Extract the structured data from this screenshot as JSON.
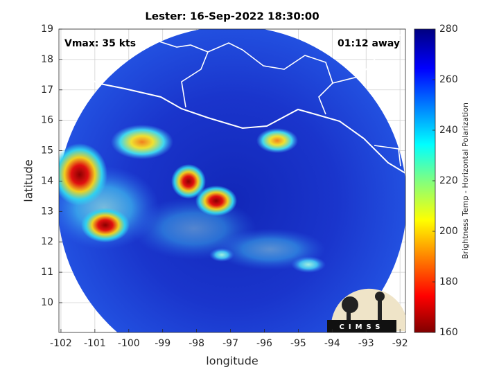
{
  "chart_data": {
    "type": "map",
    "title": "Lester: 16-Sep-2022 18:30:00",
    "annotations": [
      "Vmax: 35 kts",
      "01:12 away"
    ],
    "x_label": "longitude",
    "y_label": "latitude",
    "xlim": [
      -102.06,
      -91.84
    ],
    "xticks": [
      -102,
      -101,
      -100,
      -99,
      -98,
      -97,
      -96,
      -95,
      -94,
      -93,
      -92
    ],
    "ylim": [
      9.02,
      19
    ],
    "yticks": [
      10,
      11,
      12,
      13,
      14,
      15,
      16,
      17,
      18,
      19
    ],
    "grid": true,
    "colorbar": {
      "label": "Brightness Temp - Horizontal Polarization",
      "lim": [
        160,
        280
      ],
      "ticks": [
        160,
        180,
        200,
        220,
        240,
        260,
        280
      ]
    },
    "logo": "CIMSS"
  }
}
